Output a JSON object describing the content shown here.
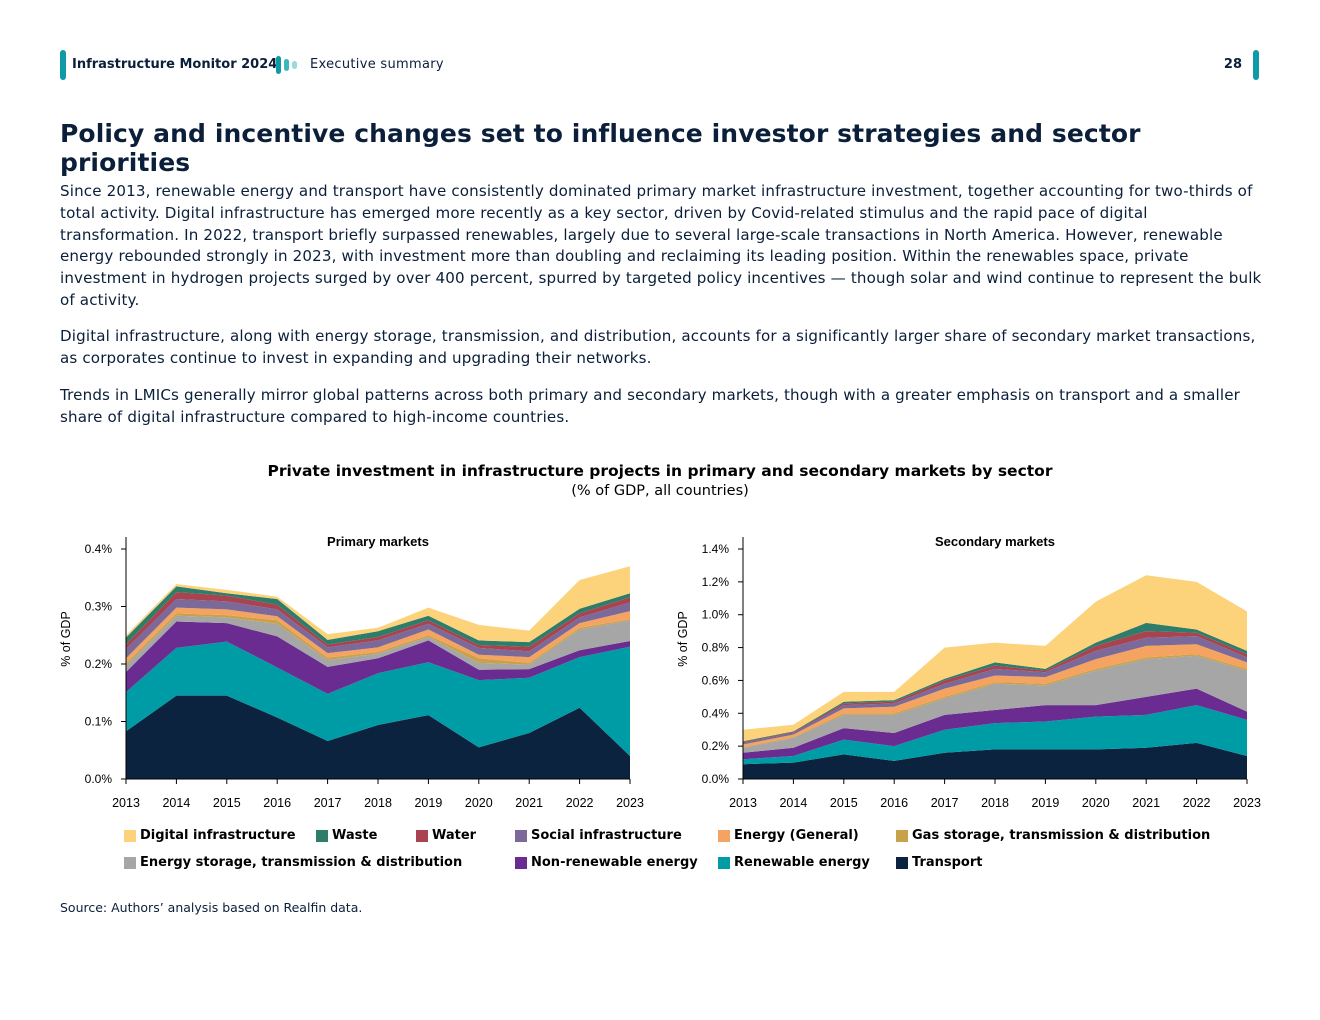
{
  "header": {
    "title": "Infrastructure Monitor 2024",
    "section": "Executive summary",
    "page_number": "28"
  },
  "page_title": "Policy and incentive changes set to influence investor strategies and sector priorities",
  "paragraphs": [
    "Since 2013, renewable energy and transport have consistently dominated primary market infrastructure investment, together accounting for two-thirds of total activity. Digital infrastructure has emerged more recently as a key sector, driven by Covid-related stimulus and the rapid pace of digital transformation. In 2022, transport briefly surpassed renewables, largely due to several large-scale transactions in North America. However, renewable energy rebounded strongly in 2023, with investment more than doubling and reclaiming its leading position. Within the renewables space, private investment in hydrogen projects surged by over 400 percent, spurred by targeted policy incentives — though solar and wind continue to represent the bulk of activity.",
    "Digital infrastructure, along with energy storage, transmission, and distribution, accounts for a significantly larger share of secondary market transactions, as corporates continue to invest in expanding and upgrading their networks.",
    "Trends in LMICs generally mirror global patterns across both primary and secondary markets, though with a greater emphasis on transport and a smaller share of digital infrastructure compared to high-income countries."
  ],
  "figure": {
    "title": "Private investment in infrastructure projects in primary and secondary markets by sector",
    "subtitle": "(% of GDP, all countries)"
  },
  "source": "Source: Authors’ analysis based on Realfin data.",
  "legend": [
    {
      "name": "Digital infrastructure",
      "color": "#fcd37a"
    },
    {
      "name": "Waste",
      "color": "#2e7d6b"
    },
    {
      "name": "Water",
      "color": "#a8434f"
    },
    {
      "name": "Social infrastructure",
      "color": "#7b6a99"
    },
    {
      "name": "Energy (General)",
      "color": "#f4a460"
    },
    {
      "name": "Gas storage, transmission & distribution",
      "color": "#c9a14a"
    },
    {
      "name": "Energy storage, transmission & distribution",
      "color": "#a6a6a6"
    },
    {
      "name": "Non-renewable energy",
      "color": "#6a2c91"
    },
    {
      "name": "Renewable energy",
      "color": "#009ca6"
    },
    {
      "name": "Transport",
      "color": "#0c2340"
    }
  ],
  "chart_data": [
    {
      "type": "area",
      "stacked": true,
      "title": "Primary markets",
      "xlabel": "",
      "ylabel": "% of GDP",
      "x": [
        "2013",
        "2014",
        "2015",
        "2016",
        "2017",
        "2018",
        "2019",
        "2020",
        "2021",
        "2022",
        "2023"
      ],
      "ylim": [
        0,
        0.4
      ],
      "yticks": [
        "0.0%",
        "0.1%",
        "0.2%",
        "0.3%",
        "0.4%"
      ],
      "yticks_values": [
        0,
        0.1,
        0.2,
        0.3,
        0.4
      ],
      "grid": false,
      "series": [
        {
          "name": "Transport",
          "values": [
            0.083,
            0.145,
            0.145,
            0.107,
            0.066,
            0.094,
            0.111,
            0.055,
            0.08,
            0.124,
            0.04
          ]
        },
        {
          "name": "Renewable energy",
          "values": [
            0.068,
            0.083,
            0.094,
            0.087,
            0.082,
            0.09,
            0.092,
            0.117,
            0.096,
            0.088,
            0.19
          ]
        },
        {
          "name": "Non-renewable energy",
          "values": [
            0.035,
            0.046,
            0.032,
            0.054,
            0.047,
            0.026,
            0.038,
            0.018,
            0.015,
            0.012,
            0.01
          ]
        },
        {
          "name": "Energy storage, transmission & distribution",
          "values": [
            0.012,
            0.01,
            0.01,
            0.022,
            0.012,
            0.008,
            0.006,
            0.012,
            0.008,
            0.036,
            0.036
          ]
        },
        {
          "name": "Gas storage, transmission & distribution",
          "values": [
            0.004,
            0.004,
            0.004,
            0.006,
            0.004,
            0.003,
            0.003,
            0.008,
            0.003,
            0.003,
            0.002
          ]
        },
        {
          "name": "Energy (General)",
          "values": [
            0.008,
            0.01,
            0.01,
            0.007,
            0.008,
            0.008,
            0.01,
            0.006,
            0.01,
            0.008,
            0.014
          ]
        },
        {
          "name": "Social infrastructure",
          "values": [
            0.016,
            0.015,
            0.014,
            0.012,
            0.01,
            0.012,
            0.01,
            0.012,
            0.01,
            0.01,
            0.015
          ]
        },
        {
          "name": "Water",
          "values": [
            0.008,
            0.012,
            0.01,
            0.008,
            0.005,
            0.006,
            0.006,
            0.005,
            0.008,
            0.007,
            0.009
          ]
        },
        {
          "name": "Waste",
          "values": [
            0.012,
            0.01,
            0.004,
            0.01,
            0.008,
            0.01,
            0.008,
            0.008,
            0.008,
            0.008,
            0.007
          ]
        },
        {
          "name": "Digital infrastructure",
          "values": [
            0.004,
            0.004,
            0.006,
            0.004,
            0.01,
            0.006,
            0.014,
            0.027,
            0.02,
            0.05,
            0.047
          ]
        }
      ]
    },
    {
      "type": "area",
      "stacked": true,
      "title": "Secondary markets",
      "xlabel": "",
      "ylabel": "% of GDP",
      "x": [
        "2013",
        "2014",
        "2015",
        "2016",
        "2017",
        "2018",
        "2019",
        "2020",
        "2021",
        "2022",
        "2023"
      ],
      "ylim": [
        0,
        1.4
      ],
      "yticks": [
        "0.0%",
        "0.2%",
        "0.4%",
        "0.6%",
        "0.8%",
        "1.0%",
        "1.2%",
        "1.4%"
      ],
      "yticks_values": [
        0,
        0.2,
        0.4,
        0.6,
        0.8,
        1.0,
        1.2,
        1.4
      ],
      "grid": false,
      "series": [
        {
          "name": "Transport",
          "values": [
            0.09,
            0.1,
            0.15,
            0.11,
            0.16,
            0.18,
            0.18,
            0.18,
            0.19,
            0.22,
            0.14
          ]
        },
        {
          "name": "Renewable energy",
          "values": [
            0.03,
            0.04,
            0.09,
            0.09,
            0.14,
            0.16,
            0.17,
            0.2,
            0.2,
            0.23,
            0.22
          ]
        },
        {
          "name": "Non-renewable energy",
          "values": [
            0.04,
            0.05,
            0.07,
            0.08,
            0.09,
            0.08,
            0.1,
            0.07,
            0.11,
            0.1,
            0.05
          ]
        },
        {
          "name": "Energy storage, transmission & distribution",
          "values": [
            0.03,
            0.06,
            0.08,
            0.11,
            0.1,
            0.16,
            0.12,
            0.21,
            0.23,
            0.2,
            0.25
          ]
        },
        {
          "name": "Gas storage, transmission & distribution",
          "values": [
            0.005,
            0.005,
            0.01,
            0.01,
            0.01,
            0.01,
            0.01,
            0.01,
            0.01,
            0.01,
            0.01
          ]
        },
        {
          "name": "Energy (General)",
          "values": [
            0.015,
            0.015,
            0.03,
            0.04,
            0.05,
            0.04,
            0.04,
            0.06,
            0.07,
            0.06,
            0.04
          ]
        },
        {
          "name": "Social infrastructure",
          "values": [
            0.01,
            0.01,
            0.02,
            0.02,
            0.03,
            0.04,
            0.03,
            0.05,
            0.05,
            0.05,
            0.03
          ]
        },
        {
          "name": "Water",
          "values": [
            0.005,
            0.005,
            0.01,
            0.01,
            0.02,
            0.02,
            0.01,
            0.03,
            0.04,
            0.02,
            0.02
          ]
        },
        {
          "name": "Waste",
          "values": [
            0.005,
            0.005,
            0.01,
            0.01,
            0.01,
            0.02,
            0.01,
            0.02,
            0.05,
            0.02,
            0.02
          ]
        },
        {
          "name": "Digital infrastructure",
          "values": [
            0.07,
            0.04,
            0.06,
            0.05,
            0.19,
            0.12,
            0.14,
            0.25,
            0.29,
            0.29,
            0.24
          ]
        }
      ]
    }
  ]
}
